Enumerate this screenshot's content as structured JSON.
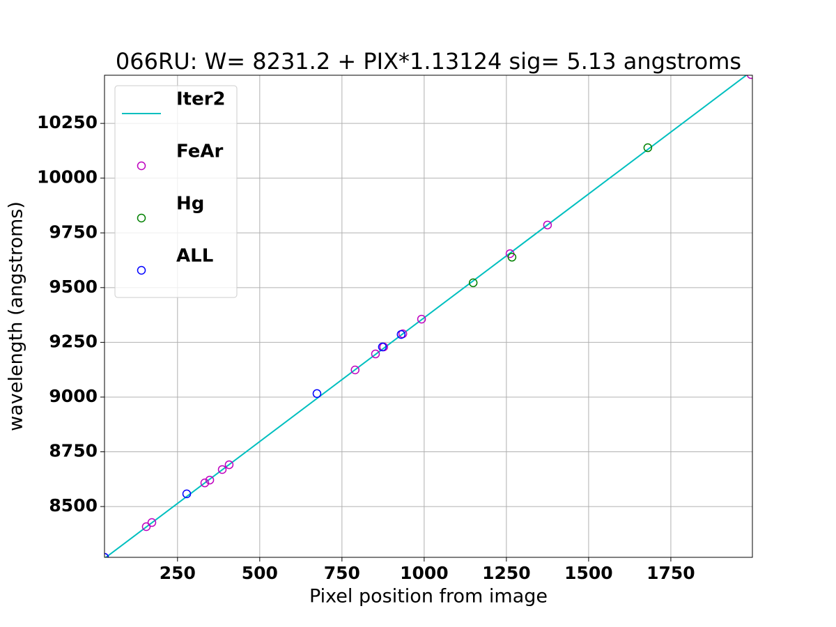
{
  "chart_data": {
    "type": "scatter",
    "title": "066RU: W= 8231.2 + PIX*1.13124  sig=  5.13 angstroms",
    "xlabel": "Pixel position from image",
    "ylabel": "wavelength (angstroms)",
    "xlim": [
      28,
      1998
    ],
    "ylim": [
      8268,
      10470
    ],
    "xticks": [
      250,
      500,
      750,
      1000,
      1250,
      1500,
      1750
    ],
    "yticks": [
      8500,
      8750,
      9000,
      9250,
      9500,
      9750,
      10000,
      10250
    ],
    "grid": true,
    "legend": "upper left",
    "series": [
      {
        "name": "Iter2",
        "kind": "line",
        "color": "#00bfbf",
        "x": [
          28,
          1998
        ],
        "values": [
          8263,
          10491
        ]
      },
      {
        "name": "FeAr",
        "kind": "marker",
        "color": "#bf00bf",
        "x": [
          28,
          155,
          172,
          333,
          348,
          386,
          407,
          790,
          852,
          877,
          935,
          992,
          1261,
          1375,
          1994
        ],
        "values": [
          8268,
          8408,
          8427,
          8608,
          8621,
          8669,
          8691,
          9124,
          9197,
          9229,
          9289,
          9356,
          9655,
          9786,
          10473
        ]
      },
      {
        "name": "Hg",
        "kind": "marker",
        "color": "#008000",
        "x": [
          1149,
          1267,
          1680
        ],
        "values": [
          9522,
          9639,
          10139
        ]
      },
      {
        "name": "ALL",
        "kind": "marker",
        "color": "#0000ff",
        "x": [
          28,
          278,
          674,
          873,
          930
        ],
        "values": [
          8268,
          8558,
          9016,
          9229,
          9286
        ]
      }
    ]
  }
}
